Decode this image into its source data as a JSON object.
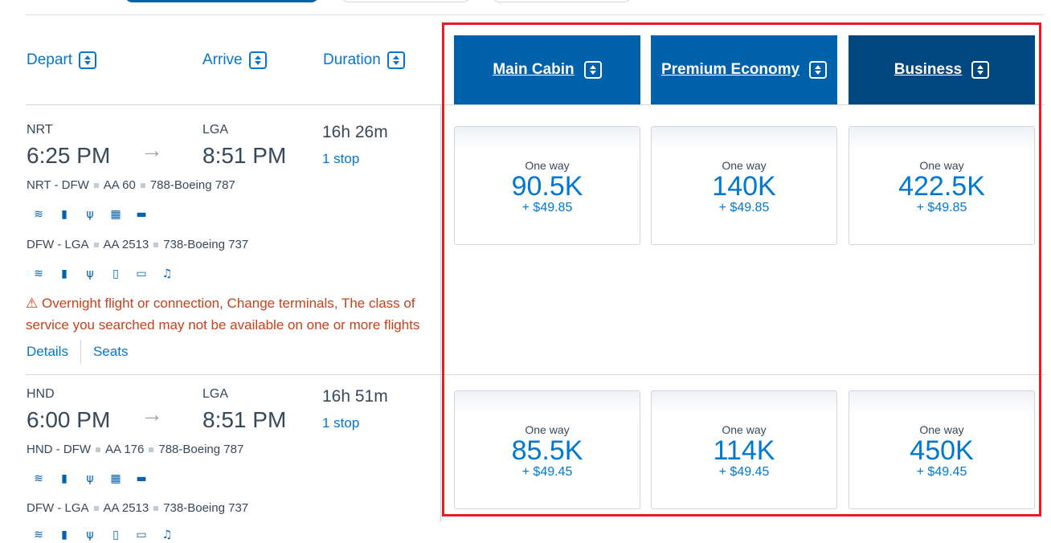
{
  "sort_headers": {
    "depart": "Depart",
    "arrive": "Arrive",
    "duration": "Duration"
  },
  "cabins": [
    {
      "label": "Main Cabin"
    },
    {
      "label": "Premium Economy"
    },
    {
      "label": "Business"
    }
  ],
  "flights": [
    {
      "origin": "NRT",
      "depart_time": "6:25 PM",
      "destination": "LGA",
      "arrive_time": "8:51 PM",
      "duration": "16h 26m",
      "stops": "1 stop",
      "segments": [
        {
          "route": "NRT - DFW",
          "flight": "AA 60",
          "aircraft": "788-Boeing 787",
          "amenities": [
            "wifi-icon",
            "power-outlet-icon",
            "usb-icon",
            "entertainment-icon",
            "lie-flat-seat-icon"
          ]
        },
        {
          "route": "DFW - LGA",
          "flight": "AA 2513",
          "aircraft": "738-Boeing 737",
          "amenities": [
            "wifi-icon",
            "power-outlet-icon",
            "usb-icon",
            "device-streaming-icon",
            "tv-icon",
            "music-icon"
          ]
        }
      ],
      "warning": "Overnight flight or connection, Change terminals, The class of service you searched may not be available on one or more flights",
      "details_label": "Details",
      "seats_label": "Seats",
      "fares": [
        {
          "label": "One way",
          "points": "90.5K",
          "tax": "+ $49.85"
        },
        {
          "label": "One way",
          "points": "140K",
          "tax": "+ $49.85"
        },
        {
          "label": "One way",
          "points": "422.5K",
          "tax": "+ $49.85"
        }
      ]
    },
    {
      "origin": "HND",
      "depart_time": "6:00 PM",
      "destination": "LGA",
      "arrive_time": "8:51 PM",
      "duration": "16h 51m",
      "stops": "1 stop",
      "segments": [
        {
          "route": "HND - DFW",
          "flight": "AA 176",
          "aircraft": "788-Boeing 787",
          "amenities": [
            "wifi-icon",
            "power-outlet-icon",
            "usb-icon",
            "entertainment-icon",
            "lie-flat-seat-icon"
          ]
        },
        {
          "route": "DFW - LGA",
          "flight": "AA 2513",
          "aircraft": "738-Boeing 737",
          "amenities": [
            "wifi-icon",
            "power-outlet-icon",
            "usb-icon",
            "device-streaming-icon",
            "tv-icon",
            "music-icon"
          ]
        }
      ],
      "fares": [
        {
          "label": "One way",
          "points": "85.5K",
          "tax": "+ $49.45"
        },
        {
          "label": "One way",
          "points": "114K",
          "tax": "+ $49.45"
        },
        {
          "label": "One way",
          "points": "450K",
          "tax": "+ $49.45"
        }
      ]
    }
  ],
  "colors": {
    "link_blue": "#0078d2",
    "cabin_blue": "#0061ab",
    "business_navy": "#00467f",
    "warning_red": "#c7411b",
    "highlight_red": "#e31e26"
  }
}
